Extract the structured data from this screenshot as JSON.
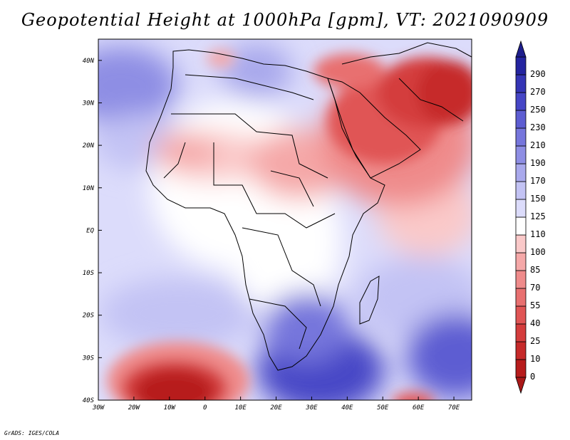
{
  "title": "Geopotential Height at 1000hPa [gpm], VT: 2021090909",
  "footer": "GrADS: IGES/COLA",
  "map": {
    "lon_range": [
      -30,
      75
    ],
    "lat_range": [
      -40,
      45
    ],
    "lon_ticks": [
      {
        "lon": -30,
        "label": "30W"
      },
      {
        "lon": -20,
        "label": "20W"
      },
      {
        "lon": -10,
        "label": "10W"
      },
      {
        "lon": 0,
        "label": "0"
      },
      {
        "lon": 10,
        "label": "10E"
      },
      {
        "lon": 20,
        "label": "20E"
      },
      {
        "lon": 30,
        "label": "30E"
      },
      {
        "lon": 40,
        "label": "40E"
      },
      {
        "lon": 50,
        "label": "50E"
      },
      {
        "lon": 60,
        "label": "60E"
      },
      {
        "lon": 70,
        "label": "70E"
      }
    ],
    "lat_ticks": [
      {
        "lat": 40,
        "label": "40N"
      },
      {
        "lat": 30,
        "label": "30N"
      },
      {
        "lat": 20,
        "label": "20N"
      },
      {
        "lat": 10,
        "label": "10N"
      },
      {
        "lat": 0,
        "label": "EQ"
      },
      {
        "lat": -10,
        "label": "10S"
      },
      {
        "lat": -20,
        "label": "20S"
      },
      {
        "lat": -30,
        "label": "30S"
      },
      {
        "lat": -40,
        "label": "40S"
      }
    ]
  },
  "colorbar": {
    "levels": [
      {
        "label": "0",
        "color": "#b71c1c"
      },
      {
        "label": "10",
        "color": "#c62a2a"
      },
      {
        "label": "25",
        "color": "#d43d3d"
      },
      {
        "label": "40",
        "color": "#e05555"
      },
      {
        "label": "55",
        "color": "#e87070"
      },
      {
        "label": "70",
        "color": "#ef8b8b"
      },
      {
        "label": "85",
        "color": "#f5a8a8"
      },
      {
        "label": "100",
        "color": "#fac9c9"
      },
      {
        "label": "110",
        "color": "#ffffff"
      },
      {
        "label": "125",
        "color": "#dcdcfb"
      },
      {
        "label": "150",
        "color": "#c3c3f4"
      },
      {
        "label": "170",
        "color": "#a9a9ec"
      },
      {
        "label": "190",
        "color": "#8e8ee4"
      },
      {
        "label": "210",
        "color": "#7676dc"
      },
      {
        "label": "230",
        "color": "#5d5dd2"
      },
      {
        "label": "250",
        "color": "#4646c6"
      },
      {
        "label": "270",
        "color": "#3535b5"
      },
      {
        "label": "290",
        "color": "#2424a0"
      }
    ],
    "under_color": "#a91818",
    "over_color": "#1e1e8c"
  }
}
